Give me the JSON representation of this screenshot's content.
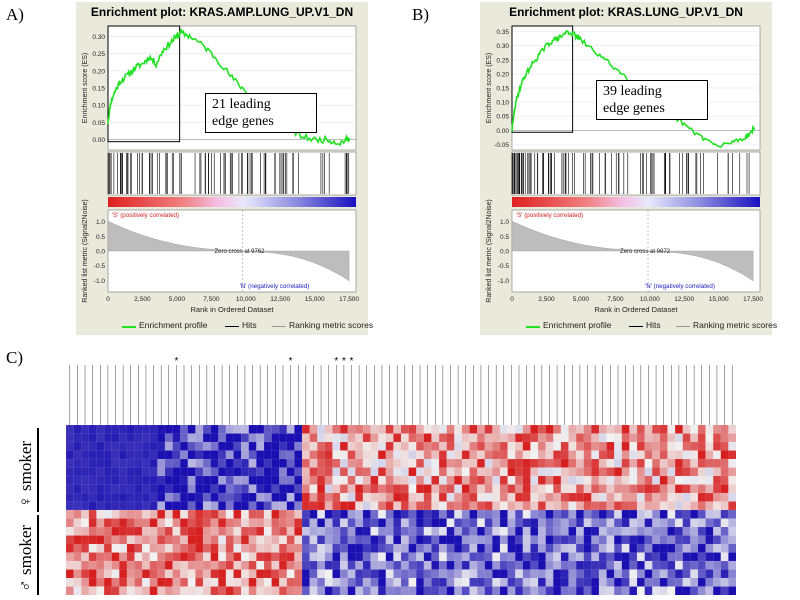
{
  "panel_labels": [
    "A)",
    "B)",
    "C)"
  ],
  "chart_data": [
    {
      "type": "line",
      "panel": "A)",
      "title": "Enrichment plot: KRAS.AMP.LUNG_UP.V1_DN",
      "ylabel_top": "Enrichment score (ES)",
      "ylabel_bottom": "Ranked list metric (Signal2Noise)",
      "xlabel": "Rank in Ordered Dataset",
      "es_yticks": [
        "0.30",
        "0.25",
        "0.20",
        "0.15",
        "0.10",
        "0.05",
        "0.00"
      ],
      "es_ylim": [
        -0.03,
        0.33
      ],
      "metric_yticks": [
        "1.0",
        "0.5",
        "0.0",
        "-0.5",
        "-1.0"
      ],
      "xticks": [
        "0",
        "2,500",
        "5,000",
        "7,500",
        "10,000",
        "12,500",
        "15,000",
        "17,500"
      ],
      "xlim": [
        0,
        18000
      ],
      "es_profile": {
        "x": [
          0,
          200,
          500,
          900,
          1500,
          2000,
          2500,
          3000,
          3500,
          4000,
          4500,
          5000,
          5300,
          6000,
          7000,
          8000,
          9000,
          10000,
          11000,
          12000,
          13000,
          14000,
          15000,
          16000,
          16800,
          17300,
          17500
        ],
        "y": [
          0.05,
          0.11,
          0.14,
          0.17,
          0.19,
          0.21,
          0.22,
          0.24,
          0.22,
          0.26,
          0.28,
          0.3,
          0.31,
          0.3,
          0.27,
          0.23,
          0.18,
          0.14,
          0.1,
          0.07,
          0.04,
          0.01,
          0.0,
          0.0,
          -0.01,
          0.0,
          0.005
        ]
      },
      "leading_edge_end": 5200,
      "zero_cross_label": "Zero cross at 9762",
      "zero_cross": 9762,
      "pos_label": "'S' (positively correlated)",
      "neg_label": "'N' (negatively correlated)",
      "callout": "21 leading\nedge genes",
      "legend": [
        "Enrichment profile",
        "Hits",
        "Ranking metric scores"
      ],
      "hit_seed": 11
    },
    {
      "type": "line",
      "panel": "B)",
      "title": "Enrichment plot: KRAS.LUNG_UP.V1_DN",
      "ylabel_top": "Enrichment score (ES)",
      "ylabel_bottom": "Ranked list metric (Signal2Noise)",
      "xlabel": "Rank in Ordered Dataset",
      "es_yticks": [
        "0.35",
        "0.30",
        "0.25",
        "0.20",
        "0.15",
        "0.10",
        "0.05",
        "0.00",
        "-0.05"
      ],
      "es_ylim": [
        -0.07,
        0.37
      ],
      "metric_yticks": [
        "1.0",
        "0.5",
        "0.0",
        "-0.5",
        "-1.0"
      ],
      "xticks": [
        "0",
        "2,500",
        "5,000",
        "7,500",
        "10,000",
        "12,500",
        "15,000",
        "17,500"
      ],
      "xlim": [
        0,
        18000
      ],
      "es_profile": {
        "x": [
          0,
          200,
          500,
          900,
          1400,
          2000,
          2500,
          3000,
          3500,
          4000,
          4500,
          5000,
          6000,
          7000,
          8000,
          9000,
          10000,
          11000,
          12000,
          13000,
          14000,
          15000,
          16000,
          16800,
          17300,
          17600
        ],
        "y": [
          0.0,
          0.08,
          0.14,
          0.19,
          0.23,
          0.27,
          0.3,
          0.32,
          0.33,
          0.35,
          0.34,
          0.32,
          0.28,
          0.24,
          0.2,
          0.16,
          0.12,
          0.08,
          0.04,
          0.0,
          -0.03,
          -0.06,
          -0.04,
          -0.03,
          -0.01,
          0.01
        ]
      },
      "leading_edge_end": 4400,
      "zero_cross_label": "Zero cross at 9872",
      "zero_cross": 9872,
      "pos_label": "'S' (positively correlated)",
      "neg_label": "'N' (negatively correlated)",
      "callout": "39 leading\nedge genes",
      "legend": [
        "Enrichment profile",
        "Hits",
        "Ranking metric scores"
      ],
      "hit_seed": 29
    },
    {
      "type": "heatmap",
      "panel": "C)",
      "row_groups": [
        {
          "label": "♀ smoker",
          "rows": 10
        },
        {
          "label": "♂ smoker",
          "rows": 10
        }
      ],
      "column_blocks": [
        {
          "n_cols": 31,
          "pattern": "blue-red"
        },
        {
          "n_cols": 57,
          "pattern": "red-blue"
        }
      ],
      "starred_column_indices": [
        14,
        29,
        35,
        36,
        37
      ],
      "star_glyph": "*",
      "colors": {
        "high": "#d62020",
        "mid": "#f2f2f2",
        "low": "#1a0fb0"
      },
      "seed": 7
    }
  ]
}
